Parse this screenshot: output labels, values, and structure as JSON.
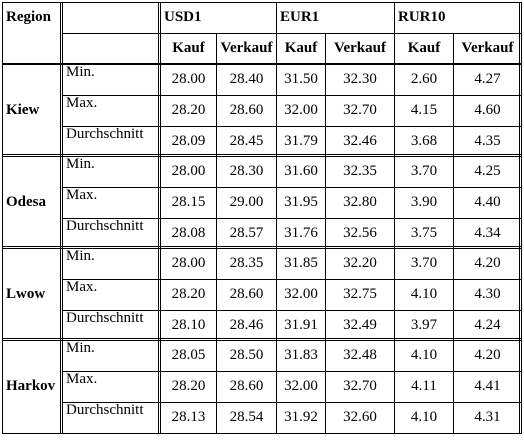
{
  "header": {
    "region": "Region",
    "currencies": [
      "USD1",
      "EUR1",
      "RUR10"
    ],
    "kauf": "Kauf",
    "verkauf": "Verkauf"
  },
  "stat_labels": [
    "Min.",
    "Max.",
    "Durchschnitt"
  ],
  "regions": [
    {
      "name": "Kiew",
      "rows": [
        [
          "28.00",
          "28.40",
          "31.50",
          "32.30",
          "2.60",
          "4.27"
        ],
        [
          "28.20",
          "28.60",
          "32.00",
          "32.70",
          "4.15",
          "4.60"
        ],
        [
          "28.09",
          "28.45",
          "31.79",
          "32.46",
          "3.68",
          "4.35"
        ]
      ]
    },
    {
      "name": "Odesa",
      "rows": [
        [
          "28.00",
          "28.30",
          "31.60",
          "32.35",
          "3.70",
          "4.25"
        ],
        [
          "28.15",
          "29.00",
          "31.95",
          "32.80",
          "3.90",
          "4.40"
        ],
        [
          "28.08",
          "28.57",
          "31.76",
          "32.56",
          "3.75",
          "4.34"
        ]
      ]
    },
    {
      "name": "Lwow",
      "rows": [
        [
          "28.00",
          "28.35",
          "31.85",
          "32.20",
          "3.70",
          "4.20"
        ],
        [
          "28.20",
          "28.60",
          "32.00",
          "32.75",
          "4.10",
          "4.30"
        ],
        [
          "28.10",
          "28.46",
          "31.91",
          "32.49",
          "3.97",
          "4.24"
        ]
      ]
    },
    {
      "name": "Harkov",
      "rows": [
        [
          "28.05",
          "28.50",
          "31.83",
          "32.48",
          "4.10",
          "4.20"
        ],
        [
          "28.20",
          "28.60",
          "32.00",
          "32.70",
          "4.11",
          "4.41"
        ],
        [
          "28.13",
          "28.54",
          "31.92",
          "32.60",
          "4.10",
          "4.31"
        ]
      ]
    }
  ]
}
